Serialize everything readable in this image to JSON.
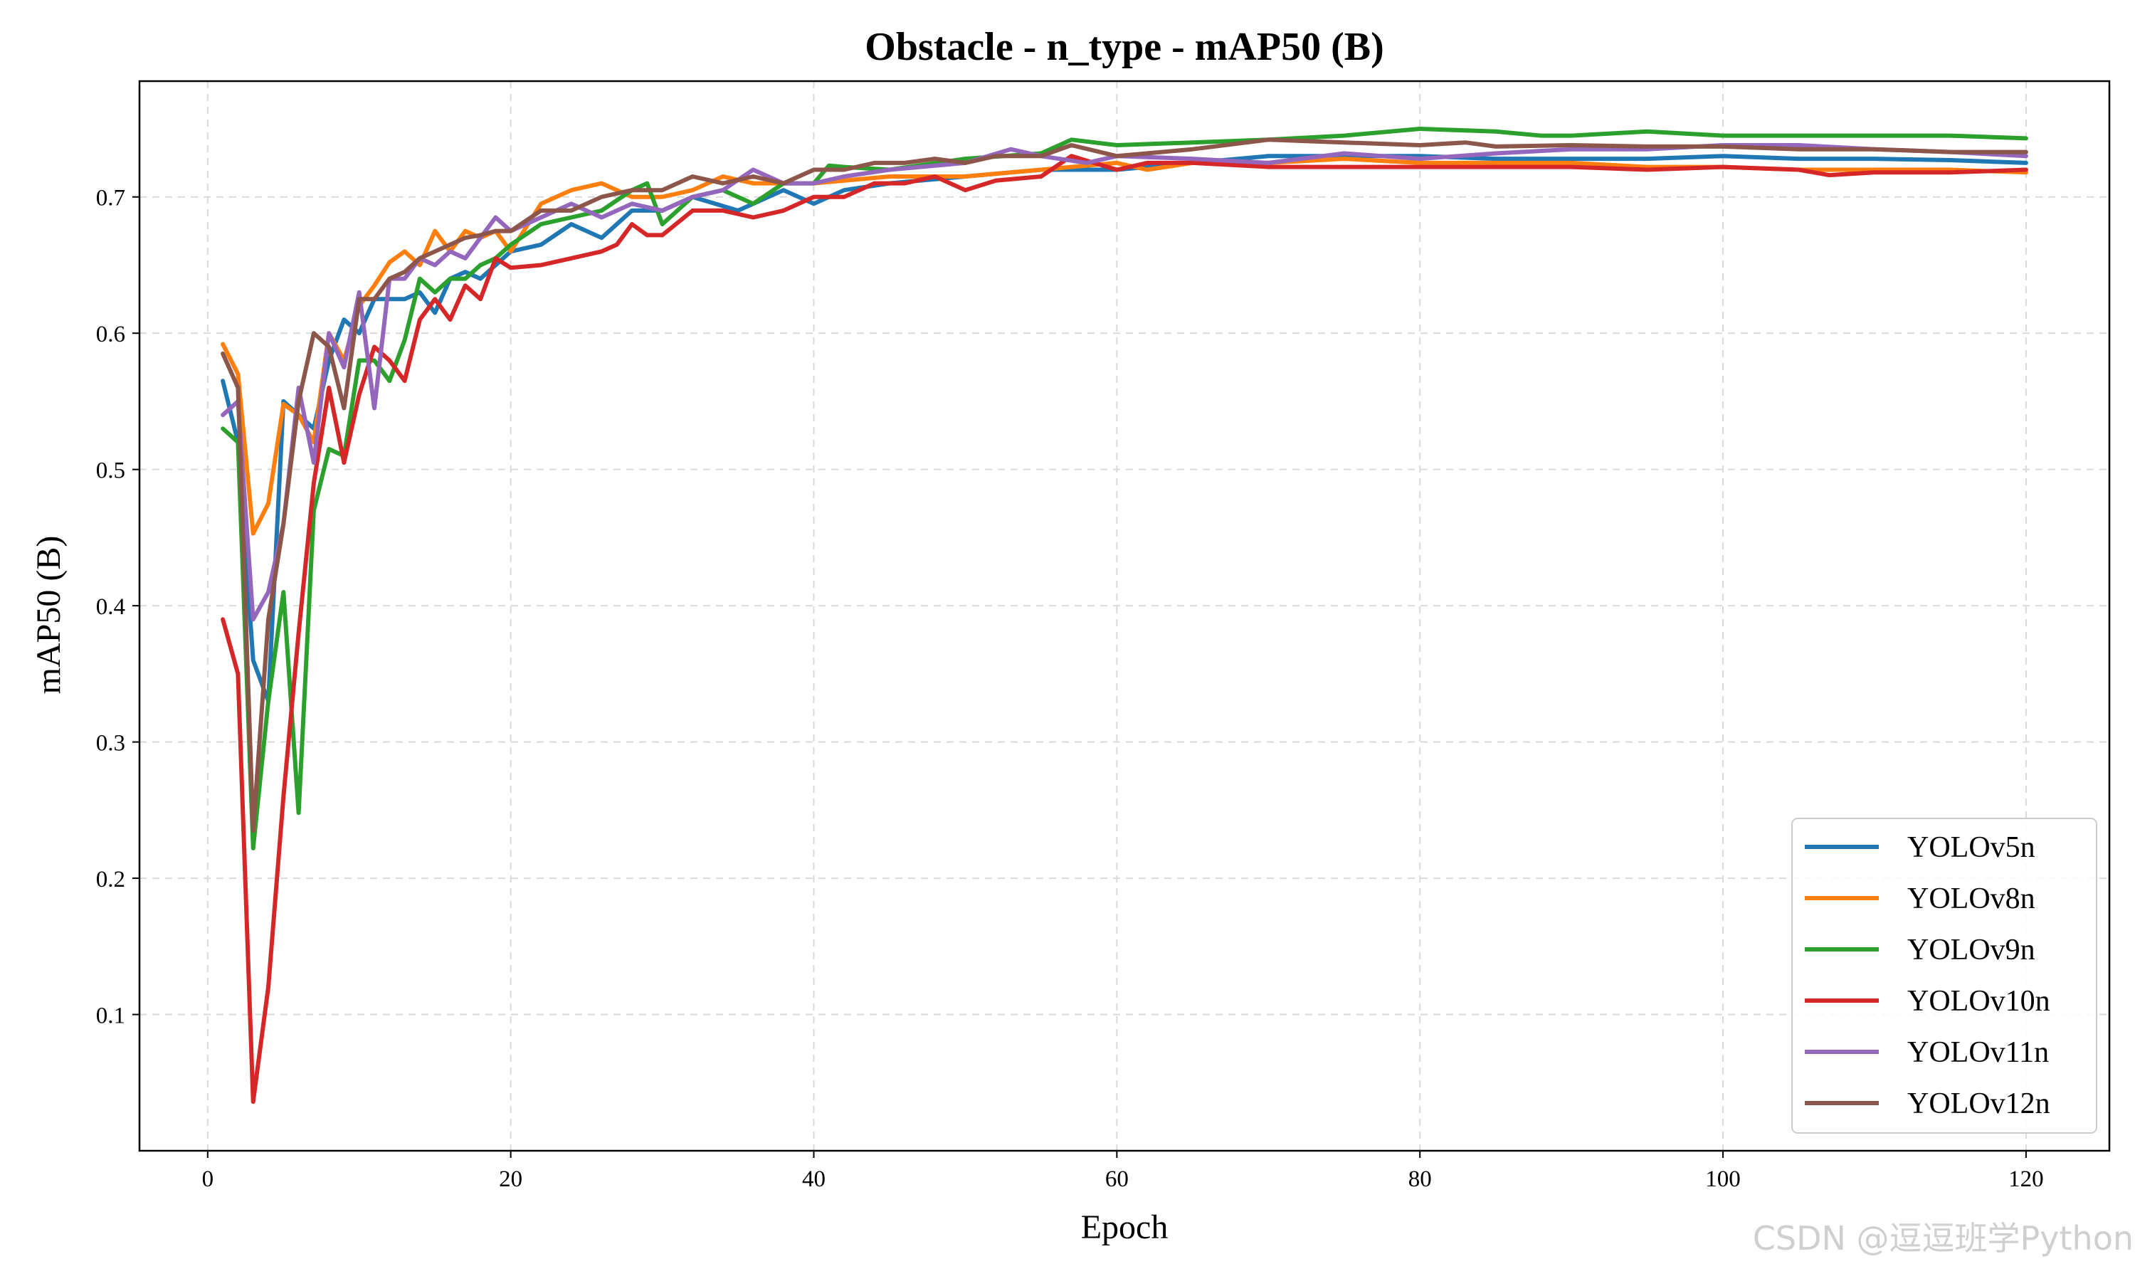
{
  "watermark": "CSDN @逗逗班学Python",
  "chart_data": {
    "type": "line",
    "title": "Obstacle - n_type - mAP50 (B)",
    "xlabel": "Epoch",
    "ylabel": "mAP50 (B)",
    "xlim": [
      -4.5,
      125.5
    ],
    "ylim": [
      0.0,
      0.785
    ],
    "xticks": [
      0,
      20,
      40,
      60,
      80,
      100,
      120
    ],
    "yticks": [
      0.1,
      0.2,
      0.3,
      0.4,
      0.5,
      0.6,
      0.7
    ],
    "ytick_labels": [
      "0.1",
      "0.2",
      "0.3",
      "0.4",
      "0.5",
      "0.6",
      "0.7"
    ],
    "grid": true,
    "legend_position": "bottom-right",
    "series": [
      {
        "name": "YOLOv5n",
        "color": "#1f77b4",
        "points": [
          [
            1,
            0.565
          ],
          [
            2,
            0.52
          ],
          [
            3,
            0.36
          ],
          [
            4,
            0.33
          ],
          [
            5,
            0.55
          ],
          [
            6,
            0.54
          ],
          [
            7,
            0.53
          ],
          [
            8,
            0.58
          ],
          [
            9,
            0.61
          ],
          [
            10,
            0.6
          ],
          [
            11,
            0.625
          ],
          [
            12,
            0.625
          ],
          [
            13,
            0.625
          ],
          [
            14,
            0.63
          ],
          [
            15,
            0.615
          ],
          [
            16,
            0.64
          ],
          [
            17,
            0.645
          ],
          [
            18,
            0.64
          ],
          [
            19,
            0.65
          ],
          [
            20,
            0.66
          ],
          [
            22,
            0.665
          ],
          [
            24,
            0.68
          ],
          [
            26,
            0.67
          ],
          [
            28,
            0.69
          ],
          [
            30,
            0.69
          ],
          [
            32,
            0.7
          ],
          [
            35,
            0.69
          ],
          [
            38,
            0.705
          ],
          [
            40,
            0.695
          ],
          [
            42,
            0.705
          ],
          [
            45,
            0.71
          ],
          [
            50,
            0.715
          ],
          [
            55,
            0.72
          ],
          [
            60,
            0.72
          ],
          [
            65,
            0.725
          ],
          [
            70,
            0.73
          ],
          [
            75,
            0.73
          ],
          [
            80,
            0.73
          ],
          [
            85,
            0.728
          ],
          [
            90,
            0.728
          ],
          [
            95,
            0.728
          ],
          [
            100,
            0.73
          ],
          [
            105,
            0.728
          ],
          [
            110,
            0.728
          ],
          [
            115,
            0.727
          ],
          [
            120,
            0.725
          ]
        ]
      },
      {
        "name": "YOLOv8n",
        "color": "#ff7f0e",
        "points": [
          [
            1,
            0.592
          ],
          [
            2,
            0.57
          ],
          [
            3,
            0.453
          ],
          [
            4,
            0.475
          ],
          [
            5,
            0.548
          ],
          [
            6,
            0.54
          ],
          [
            7,
            0.52
          ],
          [
            8,
            0.6
          ],
          [
            9,
            0.58
          ],
          [
            10,
            0.62
          ],
          [
            11,
            0.635
          ],
          [
            12,
            0.652
          ],
          [
            13,
            0.66
          ],
          [
            14,
            0.65
          ],
          [
            15,
            0.675
          ],
          [
            16,
            0.66
          ],
          [
            17,
            0.675
          ],
          [
            18,
            0.67
          ],
          [
            19,
            0.675
          ],
          [
            20,
            0.66
          ],
          [
            22,
            0.695
          ],
          [
            24,
            0.705
          ],
          [
            26,
            0.71
          ],
          [
            28,
            0.7
          ],
          [
            30,
            0.7
          ],
          [
            32,
            0.705
          ],
          [
            34,
            0.715
          ],
          [
            36,
            0.71
          ],
          [
            38,
            0.71
          ],
          [
            40,
            0.71
          ],
          [
            45,
            0.715
          ],
          [
            50,
            0.715
          ],
          [
            55,
            0.72
          ],
          [
            60,
            0.725
          ],
          [
            62,
            0.72
          ],
          [
            65,
            0.725
          ],
          [
            70,
            0.725
          ],
          [
            75,
            0.728
          ],
          [
            80,
            0.725
          ],
          [
            85,
            0.725
          ],
          [
            90,
            0.725
          ],
          [
            95,
            0.722
          ],
          [
            100,
            0.722
          ],
          [
            105,
            0.72
          ],
          [
            110,
            0.72
          ],
          [
            115,
            0.72
          ],
          [
            120,
            0.718
          ]
        ]
      },
      {
        "name": "YOLOv9n",
        "color": "#2ca02c",
        "points": [
          [
            1,
            0.53
          ],
          [
            2,
            0.52
          ],
          [
            3,
            0.222
          ],
          [
            4,
            0.33
          ],
          [
            5,
            0.41
          ],
          [
            6,
            0.248
          ],
          [
            7,
            0.47
          ],
          [
            8,
            0.515
          ],
          [
            9,
            0.51
          ],
          [
            10,
            0.58
          ],
          [
            11,
            0.58
          ],
          [
            12,
            0.565
          ],
          [
            13,
            0.595
          ],
          [
            14,
            0.64
          ],
          [
            15,
            0.63
          ],
          [
            16,
            0.64
          ],
          [
            17,
            0.64
          ],
          [
            18,
            0.65
          ],
          [
            19,
            0.655
          ],
          [
            20,
            0.665
          ],
          [
            22,
            0.68
          ],
          [
            24,
            0.685
          ],
          [
            26,
            0.69
          ],
          [
            28,
            0.705
          ],
          [
            29,
            0.71
          ],
          [
            30,
            0.68
          ],
          [
            32,
            0.7
          ],
          [
            34,
            0.705
          ],
          [
            36,
            0.695
          ],
          [
            38,
            0.71
          ],
          [
            40,
            0.71
          ],
          [
            41,
            0.723
          ],
          [
            42,
            0.722
          ],
          [
            45,
            0.72
          ],
          [
            50,
            0.728
          ],
          [
            55,
            0.732
          ],
          [
            57,
            0.742
          ],
          [
            60,
            0.738
          ],
          [
            65,
            0.74
          ],
          [
            70,
            0.742
          ],
          [
            75,
            0.745
          ],
          [
            80,
            0.75
          ],
          [
            85,
            0.748
          ],
          [
            88,
            0.745
          ],
          [
            90,
            0.745
          ],
          [
            95,
            0.748
          ],
          [
            100,
            0.745
          ],
          [
            105,
            0.745
          ],
          [
            110,
            0.745
          ],
          [
            115,
            0.745
          ],
          [
            120,
            0.743
          ]
        ]
      },
      {
        "name": "YOLOv10n",
        "color": "#d62728",
        "points": [
          [
            1,
            0.39
          ],
          [
            2,
            0.35
          ],
          [
            3,
            0.036
          ],
          [
            4,
            0.12
          ],
          [
            5,
            0.26
          ],
          [
            6,
            0.38
          ],
          [
            7,
            0.49
          ],
          [
            8,
            0.56
          ],
          [
            9,
            0.505
          ],
          [
            10,
            0.555
          ],
          [
            11,
            0.59
          ],
          [
            12,
            0.58
          ],
          [
            13,
            0.565
          ],
          [
            14,
            0.61
          ],
          [
            15,
            0.625
          ],
          [
            16,
            0.61
          ],
          [
            17,
            0.635
          ],
          [
            18,
            0.625
          ],
          [
            19,
            0.655
          ],
          [
            20,
            0.648
          ],
          [
            22,
            0.65
          ],
          [
            24,
            0.655
          ],
          [
            26,
            0.66
          ],
          [
            27,
            0.665
          ],
          [
            28,
            0.68
          ],
          [
            29,
            0.672
          ],
          [
            30,
            0.672
          ],
          [
            32,
            0.69
          ],
          [
            34,
            0.69
          ],
          [
            36,
            0.685
          ],
          [
            38,
            0.69
          ],
          [
            40,
            0.7
          ],
          [
            42,
            0.7
          ],
          [
            44,
            0.71
          ],
          [
            46,
            0.71
          ],
          [
            48,
            0.715
          ],
          [
            50,
            0.705
          ],
          [
            52,
            0.712
          ],
          [
            55,
            0.715
          ],
          [
            57,
            0.73
          ],
          [
            60,
            0.72
          ],
          [
            62,
            0.725
          ],
          [
            65,
            0.725
          ],
          [
            70,
            0.722
          ],
          [
            75,
            0.722
          ],
          [
            80,
            0.722
          ],
          [
            85,
            0.722
          ],
          [
            90,
            0.722
          ],
          [
            95,
            0.72
          ],
          [
            100,
            0.722
          ],
          [
            105,
            0.72
          ],
          [
            107,
            0.716
          ],
          [
            110,
            0.718
          ],
          [
            115,
            0.718
          ],
          [
            120,
            0.72
          ]
        ]
      },
      {
        "name": "YOLOv11n",
        "color": "#9467bd",
        "points": [
          [
            1,
            0.54
          ],
          [
            2,
            0.55
          ],
          [
            3,
            0.39
          ],
          [
            4,
            0.41
          ],
          [
            5,
            0.46
          ],
          [
            6,
            0.56
          ],
          [
            7,
            0.505
          ],
          [
            8,
            0.6
          ],
          [
            9,
            0.575
          ],
          [
            10,
            0.63
          ],
          [
            11,
            0.545
          ],
          [
            12,
            0.64
          ],
          [
            13,
            0.64
          ],
          [
            14,
            0.655
          ],
          [
            15,
            0.65
          ],
          [
            16,
            0.66
          ],
          [
            17,
            0.655
          ],
          [
            18,
            0.67
          ],
          [
            19,
            0.685
          ],
          [
            20,
            0.675
          ],
          [
            22,
            0.685
          ],
          [
            24,
            0.695
          ],
          [
            26,
            0.685
          ],
          [
            28,
            0.695
          ],
          [
            30,
            0.69
          ],
          [
            32,
            0.7
          ],
          [
            34,
            0.705
          ],
          [
            36,
            0.72
          ],
          [
            38,
            0.71
          ],
          [
            40,
            0.71
          ],
          [
            42,
            0.715
          ],
          [
            45,
            0.72
          ],
          [
            50,
            0.725
          ],
          [
            53,
            0.735
          ],
          [
            55,
            0.73
          ],
          [
            58,
            0.725
          ],
          [
            60,
            0.73
          ],
          [
            65,
            0.728
          ],
          [
            70,
            0.725
          ],
          [
            75,
            0.732
          ],
          [
            80,
            0.728
          ],
          [
            85,
            0.732
          ],
          [
            90,
            0.735
          ],
          [
            95,
            0.735
          ],
          [
            100,
            0.738
          ],
          [
            105,
            0.738
          ],
          [
            110,
            0.735
          ],
          [
            115,
            0.733
          ],
          [
            120,
            0.73
          ]
        ]
      },
      {
        "name": "YOLOv12n",
        "color": "#8c564b",
        "points": [
          [
            1,
            0.585
          ],
          [
            2,
            0.56
          ],
          [
            3,
            0.235
          ],
          [
            4,
            0.39
          ],
          [
            5,
            0.46
          ],
          [
            6,
            0.55
          ],
          [
            7,
            0.6
          ],
          [
            8,
            0.59
          ],
          [
            9,
            0.545
          ],
          [
            10,
            0.625
          ],
          [
            11,
            0.625
          ],
          [
            12,
            0.64
          ],
          [
            13,
            0.645
          ],
          [
            14,
            0.655
          ],
          [
            15,
            0.66
          ],
          [
            16,
            0.665
          ],
          [
            17,
            0.67
          ],
          [
            18,
            0.672
          ],
          [
            19,
            0.675
          ],
          [
            20,
            0.675
          ],
          [
            22,
            0.69
          ],
          [
            24,
            0.69
          ],
          [
            26,
            0.7
          ],
          [
            28,
            0.705
          ],
          [
            30,
            0.705
          ],
          [
            32,
            0.715
          ],
          [
            34,
            0.71
          ],
          [
            36,
            0.715
          ],
          [
            38,
            0.71
          ],
          [
            40,
            0.72
          ],
          [
            42,
            0.72
          ],
          [
            44,
            0.725
          ],
          [
            46,
            0.725
          ],
          [
            48,
            0.728
          ],
          [
            50,
            0.725
          ],
          [
            52,
            0.73
          ],
          [
            55,
            0.73
          ],
          [
            57,
            0.738
          ],
          [
            60,
            0.73
          ],
          [
            65,
            0.735
          ],
          [
            70,
            0.742
          ],
          [
            75,
            0.74
          ],
          [
            80,
            0.738
          ],
          [
            83,
            0.74
          ],
          [
            85,
            0.737
          ],
          [
            90,
            0.738
          ],
          [
            95,
            0.737
          ],
          [
            100,
            0.737
          ],
          [
            105,
            0.735
          ],
          [
            110,
            0.735
          ],
          [
            115,
            0.733
          ],
          [
            120,
            0.733
          ]
        ]
      }
    ]
  }
}
